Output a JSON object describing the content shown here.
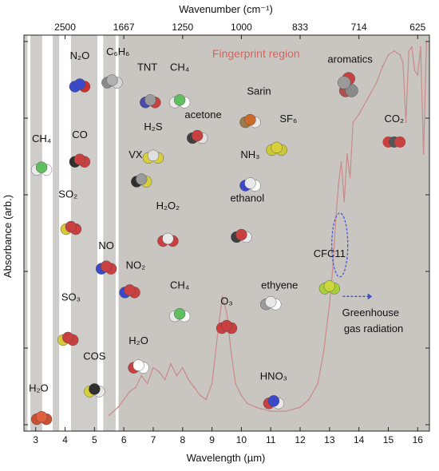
{
  "chart_data": {
    "type": "line",
    "xlabel": "Wavelength (µm)",
    "ylabel": "Absorbance (arb.)",
    "top_axis_label": "Wavenumber (cm⁻¹)",
    "xlim": [
      2.6,
      16.4
    ],
    "x_ticks": [
      3,
      4,
      5,
      6,
      7,
      8,
      9,
      10,
      11,
      12,
      13,
      14,
      15,
      16
    ],
    "top_ticks": [
      {
        "label": "2500",
        "x": 4.0
      },
      {
        "label": "1667",
        "x": 6.0
      },
      {
        "label": "1250",
        "x": 8.0
      },
      {
        "label": "1000",
        "x": 10.0
      },
      {
        "label": "833",
        "x": 12.0
      },
      {
        "label": "714",
        "x": 14.0
      },
      {
        "label": "625",
        "x": 16.0
      }
    ],
    "ylim": [
      0,
      1
    ],
    "grid": false,
    "background_color": "#cfcdca",
    "line_color": "#c98a8a",
    "white_bands": [
      [
        2.72,
        2.82
      ],
      [
        3.22,
        3.58
      ],
      [
        3.8,
        4.2
      ],
      [
        5.1,
        5.3
      ],
      [
        5.72,
        5.82
      ]
    ],
    "fingerprint_region": {
      "label": "Fingerprint region",
      "x_start": 5.8,
      "x_end": 16.4,
      "color": "#c9c6c2",
      "label_color": "#d9635a"
    },
    "series": [
      {
        "values_x": [
          5.5,
          5.8,
          6.0,
          6.2,
          6.4,
          6.6,
          6.8,
          7.0,
          7.2,
          7.4,
          7.6,
          7.8,
          8.0,
          8.2,
          8.4,
          8.6,
          8.8,
          9.0,
          9.2,
          9.35,
          9.5,
          9.65,
          9.8,
          10.0,
          10.2,
          10.5,
          11.0,
          11.5,
          12.0,
          12.3,
          12.6,
          12.8,
          13.0,
          13.1,
          13.2,
          13.3,
          13.4,
          13.5,
          13.6,
          13.7,
          13.8,
          14.0,
          14.3,
          14.6,
          14.8,
          15.0,
          15.2,
          15.4,
          15.5,
          15.6,
          15.7,
          15.8,
          15.9,
          16.0,
          16.1,
          16.2,
          16.3
        ],
        "values_y": [
          0.04,
          0.06,
          0.08,
          0.1,
          0.11,
          0.14,
          0.12,
          0.16,
          0.15,
          0.13,
          0.17,
          0.14,
          0.16,
          0.13,
          0.11,
          0.09,
          0.08,
          0.12,
          0.25,
          0.34,
          0.3,
          0.2,
          0.12,
          0.09,
          0.07,
          0.06,
          0.05,
          0.05,
          0.06,
          0.08,
          0.12,
          0.2,
          0.32,
          0.4,
          0.52,
          0.62,
          0.68,
          0.58,
          0.7,
          0.64,
          0.78,
          0.8,
          0.84,
          0.88,
          0.92,
          0.95,
          0.96,
          0.95,
          0.93,
          0.78,
          0.96,
          0.97,
          0.91,
          0.9,
          0.97,
          0.7,
          0.98
        ]
      }
    ],
    "annotations": [
      {
        "label": "aromatics",
        "x": 13.7,
        "y": 0.93
      },
      {
        "label": "CO₂",
        "x": 15.2,
        "y": 0.78
      },
      {
        "label": "Greenhouse",
        "x": 14.4,
        "y": 0.29
      },
      {
        "label": "gas radiation",
        "x": 14.5,
        "y": 0.25
      }
    ]
  },
  "molecules": [
    {
      "label": "N₂O",
      "x": 4.5,
      "y": 0.94,
      "ix": 4.5,
      "iy": 0.87,
      "colors": [
        "#3b49c9",
        "#3b49c9",
        "#c9302c"
      ]
    },
    {
      "label": "C₆H₆",
      "x": 5.8,
      "y": 0.95,
      "ix": 5.6,
      "iy": 0.88,
      "colors": [
        "#8a8a8a",
        "#b0b0b0",
        "#d8d8d8"
      ]
    },
    {
      "label": "TNT",
      "x": 6.8,
      "y": 0.91,
      "ix": 6.9,
      "iy": 0.83,
      "colors": [
        "#4a4aa8",
        "#9a9a9a",
        "#c94040"
      ]
    },
    {
      "label": "CH₄",
      "x": 7.9,
      "y": 0.91,
      "ix": 7.9,
      "iy": 0.83,
      "colors": [
        "#e8e8e8",
        "#5fbf5f",
        "#ffffff"
      ]
    },
    {
      "label": "Sarin",
      "x": 10.6,
      "y": 0.85,
      "ix": 10.3,
      "iy": 0.78,
      "colors": [
        "#9a7a4a",
        "#c96a2a",
        "#e8e8e8"
      ]
    },
    {
      "label": "acetone",
      "x": 8.7,
      "y": 0.79,
      "ix": 8.5,
      "iy": 0.74,
      "colors": [
        "#404040",
        "#c94040",
        "#e0e0e0"
      ]
    },
    {
      "label": "H₂S",
      "x": 7.0,
      "y": 0.76,
      "ix": 7.0,
      "iy": 0.69,
      "colors": [
        "#d8d03a",
        "#e0e0e0",
        "#d8d03a"
      ]
    },
    {
      "label": "SF₆",
      "x": 11.6,
      "y": 0.78,
      "ix": 11.2,
      "iy": 0.71,
      "colors": [
        "#c9c93a",
        "#d8d03a",
        "#c9c93a"
      ]
    },
    {
      "label": "CH₄",
      "x": 3.2,
      "y": 0.73,
      "ix": 3.2,
      "iy": 0.66,
      "colors": [
        "#e8e8e8",
        "#5fbf5f",
        "#ffffff"
      ]
    },
    {
      "label": "CO",
      "x": 4.5,
      "y": 0.74,
      "ix": 4.5,
      "iy": 0.68,
      "colors": [
        "#303030",
        "#c94040",
        "#c94040"
      ]
    },
    {
      "label": "VX",
      "x": 6.4,
      "y": 0.69,
      "ix": 6.6,
      "iy": 0.63,
      "colors": [
        "#303030",
        "#9a9a9a",
        "#d8d03a"
      ]
    },
    {
      "label": "NH₃",
      "x": 10.3,
      "y": 0.69,
      "ix": 10.3,
      "iy": 0.62,
      "colors": [
        "#3b49c9",
        "#e8e8e8",
        "#ffffff"
      ]
    },
    {
      "label": "SO₂",
      "x": 4.1,
      "y": 0.59,
      "ix": 4.2,
      "iy": 0.51,
      "colors": [
        "#d8c83a",
        "#c94040",
        "#c94040"
      ]
    },
    {
      "label": "H₂O₂",
      "x": 7.5,
      "y": 0.56,
      "ix": 7.5,
      "iy": 0.48,
      "colors": [
        "#c94040",
        "#e8e8e8",
        "#c94040"
      ]
    },
    {
      "label": "ethanol",
      "x": 10.2,
      "y": 0.58,
      "ix": 10.0,
      "iy": 0.49,
      "colors": [
        "#404040",
        "#c94040",
        "#e8e8e8"
      ]
    },
    {
      "label": "NO",
      "x": 5.4,
      "y": 0.46,
      "ix": 5.4,
      "iy": 0.41,
      "colors": [
        "#3b49c9",
        "#c94040",
        "#c94040"
      ]
    },
    {
      "label": "NO₂",
      "x": 6.4,
      "y": 0.41,
      "ix": 6.2,
      "iy": 0.35,
      "colors": [
        "#3b49c9",
        "#c94040",
        "#c94040"
      ]
    },
    {
      "label": "CFC11",
      "x": 13.0,
      "y": 0.44,
      "ix": 13.0,
      "iy": 0.36,
      "colors": [
        "#a8d03a",
        "#c8d83a",
        "#a8d03a"
      ]
    },
    {
      "label": "CH₄",
      "x": 7.9,
      "y": 0.36,
      "ix": 7.9,
      "iy": 0.29,
      "colors": [
        "#e8e8e8",
        "#5fbf5f",
        "#ffffff"
      ]
    },
    {
      "label": "ethyene",
      "x": 11.3,
      "y": 0.36,
      "ix": 11.0,
      "iy": 0.32,
      "colors": [
        "#9a9a9a",
        "#e8e8e8",
        "#ffffff"
      ]
    },
    {
      "label": "SO₃",
      "x": 4.2,
      "y": 0.33,
      "ix": 4.1,
      "iy": 0.23,
      "colors": [
        "#d8c83a",
        "#c94040",
        "#c94040"
      ]
    },
    {
      "label": "O₃",
      "x": 9.5,
      "y": 0.32,
      "ix": 9.5,
      "iy": 0.26,
      "colors": [
        "#c94040",
        "#c94040",
        "#c94040"
      ]
    },
    {
      "label": "COS",
      "x": 5.0,
      "y": 0.18,
      "ix": 5.0,
      "iy": 0.1,
      "colors": [
        "#d8d03a",
        "#303030",
        "#e8e8e8"
      ]
    },
    {
      "label": "H₂O",
      "x": 6.5,
      "y": 0.22,
      "ix": 6.5,
      "iy": 0.16,
      "colors": [
        "#c94040",
        "#ffffff",
        "#ffffff"
      ]
    },
    {
      "label": "HNO₃",
      "x": 11.1,
      "y": 0.13,
      "ix": 11.1,
      "iy": 0.07,
      "colors": [
        "#c94040",
        "#3b49c9",
        "#e8e8e8"
      ]
    },
    {
      "label": "H₂O",
      "x": 3.1,
      "y": 0.1,
      "ix": 3.2,
      "iy": 0.03,
      "colors": [
        "#c95030",
        "#e06040",
        "#c95030"
      ]
    }
  ]
}
